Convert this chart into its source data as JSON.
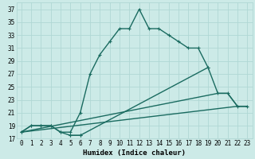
{
  "xlabel": "Humidex (Indice chaleur)",
  "bg_color": "#cceae7",
  "grid_color": "#b0d8d4",
  "line_color": "#1a6b60",
  "xlim": [
    -0.5,
    23.5
  ],
  "ylim": [
    17,
    38
  ],
  "xticks": [
    0,
    1,
    2,
    3,
    4,
    5,
    6,
    7,
    8,
    9,
    10,
    11,
    12,
    13,
    14,
    15,
    16,
    17,
    18,
    19,
    20,
    21,
    22,
    23
  ],
  "yticks": [
    17,
    19,
    21,
    23,
    25,
    27,
    29,
    31,
    33,
    35,
    37
  ],
  "curve1_x": [
    0,
    1,
    2,
    3,
    4,
    5,
    6,
    7,
    8,
    9,
    10,
    11,
    12,
    13,
    14,
    15,
    16,
    17,
    18,
    19
  ],
  "curve1_y": [
    18,
    19,
    19,
    19,
    18,
    18,
    21,
    27,
    30,
    32,
    34,
    34,
    37,
    34,
    34,
    33,
    32,
    31,
    31,
    28
  ],
  "curve2a_x": [
    0,
    1,
    2,
    3,
    4,
    5,
    6
  ],
  "curve2a_y": [
    18,
    19,
    19,
    19,
    18,
    17.5,
    17.5
  ],
  "curve2b_x": [
    5,
    6,
    19,
    20,
    21,
    22,
    23
  ],
  "curve2b_y": [
    17.5,
    17.5,
    28,
    24,
    24,
    22,
    22
  ],
  "curve3_x": [
    0,
    20,
    21,
    22,
    23
  ],
  "curve3_y": [
    18,
    24,
    24,
    22,
    22
  ],
  "curve4_x": [
    0,
    22,
    23
  ],
  "curve4_y": [
    18,
    22,
    22
  ]
}
